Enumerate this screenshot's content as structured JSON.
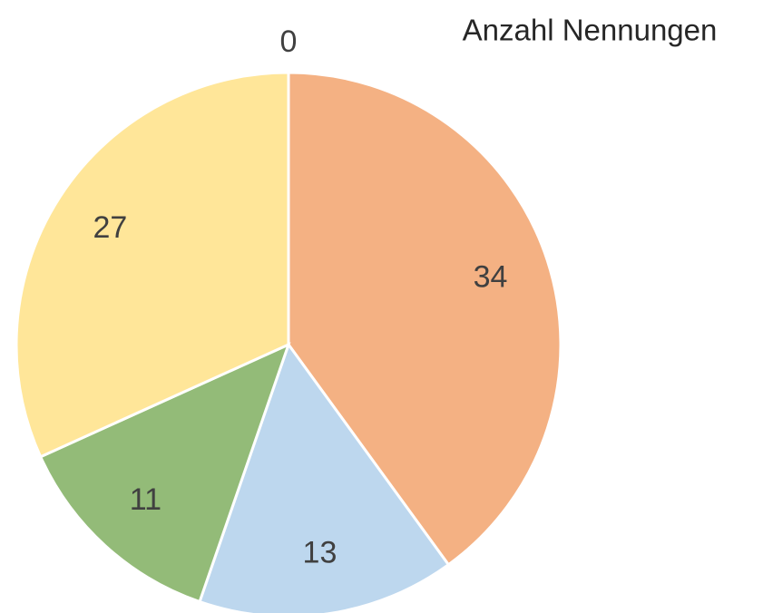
{
  "chart_data": {
    "type": "pie",
    "title": "Anzahl Nennungen",
    "values": [
      34,
      13,
      11,
      27,
      0
    ],
    "colors": [
      "#f4b183",
      "#bdd7ee",
      "#93bb78",
      "#ffe699",
      "#a5a5a5"
    ]
  }
}
